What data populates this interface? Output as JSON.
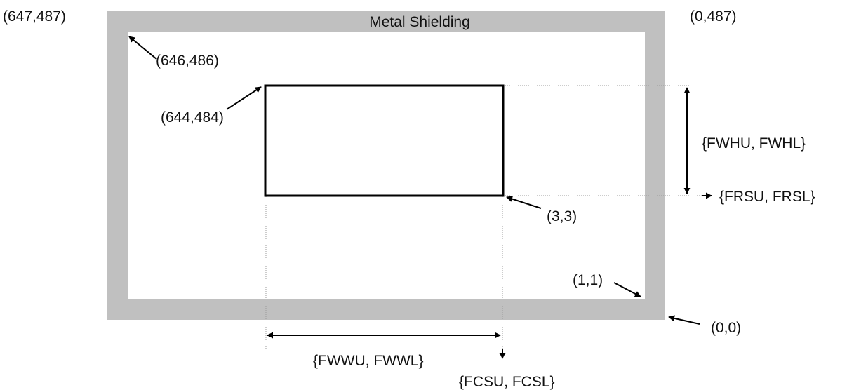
{
  "colors": {
    "shield": "#c0c0c0",
    "inner_background": "#ffffff",
    "window_stroke": "#000000",
    "arrow": "#000000",
    "guide_line": "#9a9a9a",
    "text": "#111111"
  },
  "labels": {
    "shield_title": "Metal Shielding",
    "outer_top_left": "(647,487)",
    "outer_top_right": "(0,487)",
    "inner_top_left": "(646,486)",
    "window_top_left": "(644,484)",
    "window_bottom_right": "(3,3)",
    "inner_bottom_right": "(1,1)",
    "outer_bottom_right": "(0,0)",
    "window_height": "{FWHU, FWHL}",
    "row_start": "{FRSU, FRSL}",
    "window_width": "{FWWU, FWWL}",
    "column_start": "{FCSU, FCSL}"
  }
}
